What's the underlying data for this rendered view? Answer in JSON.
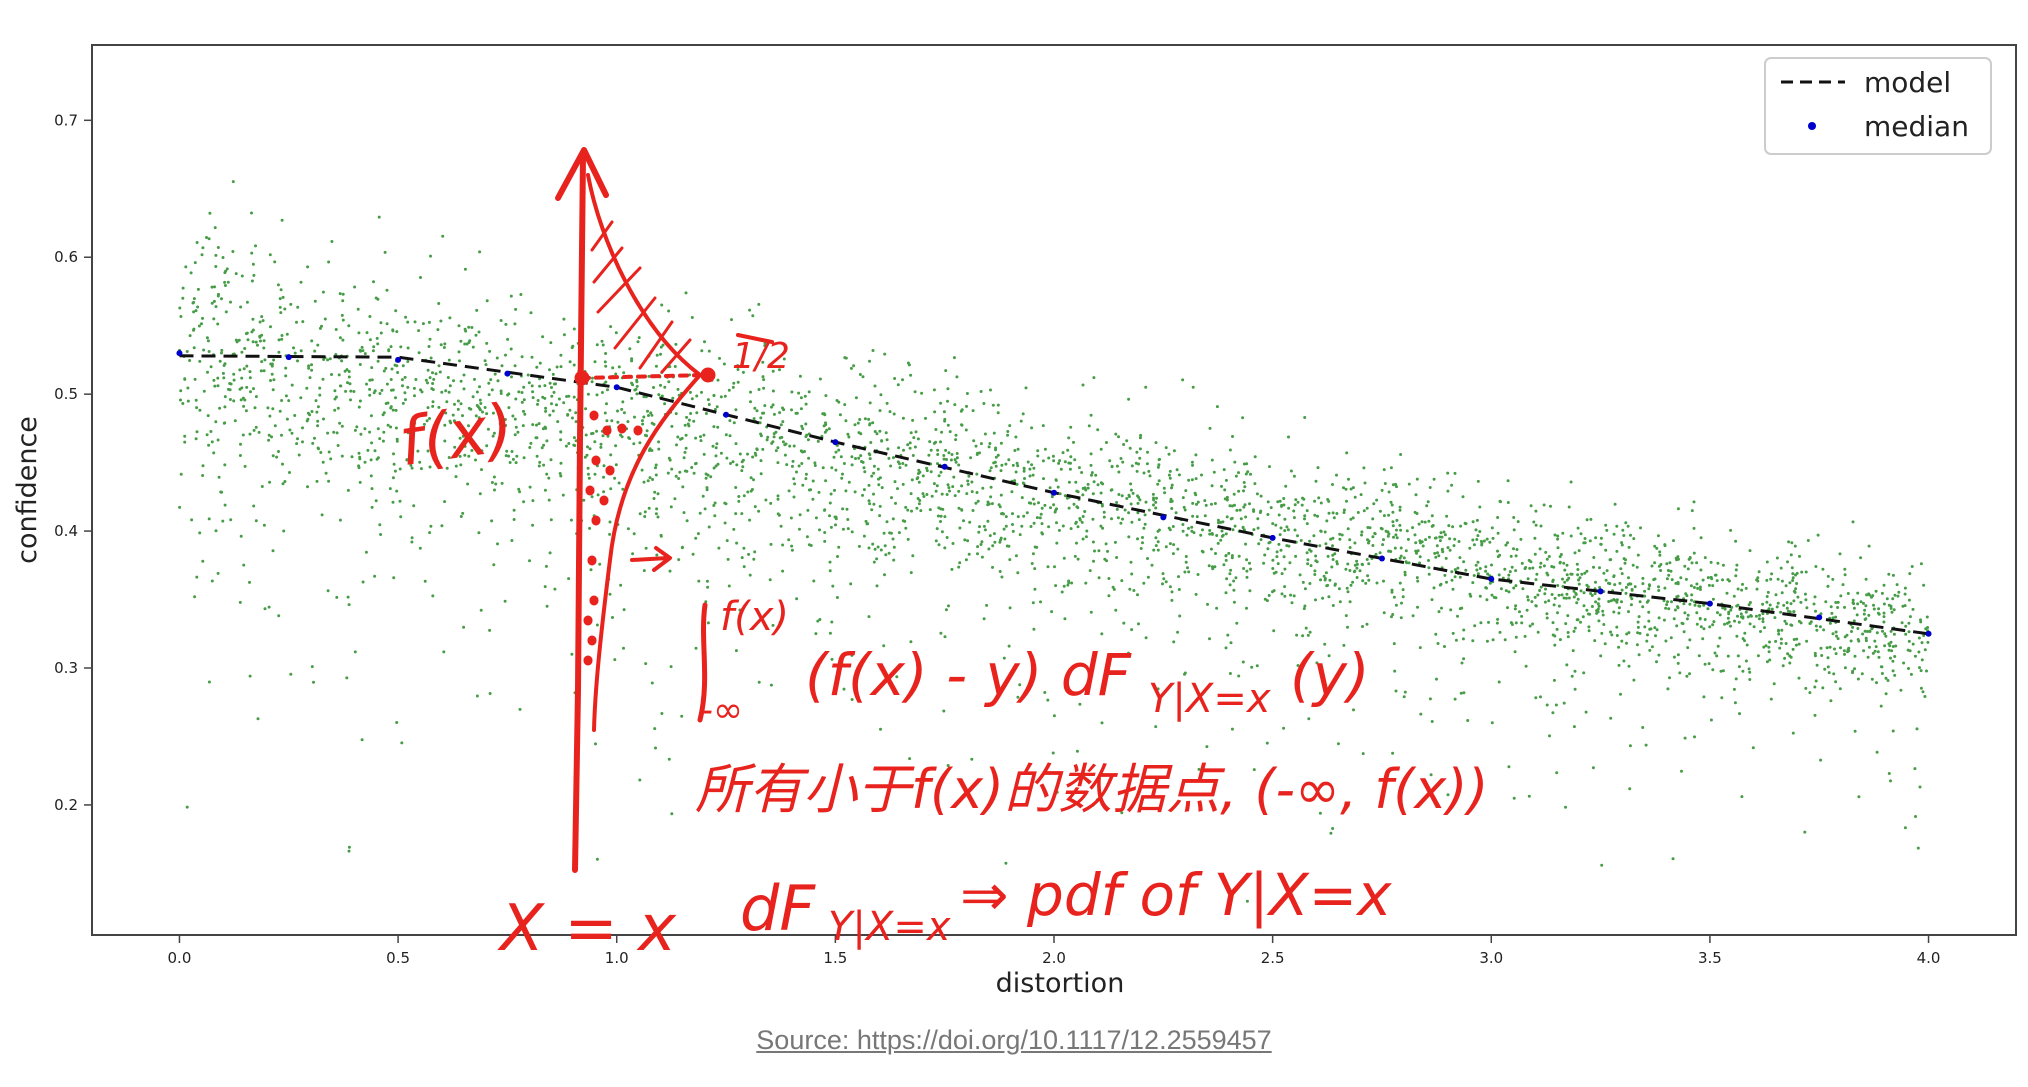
{
  "chart_data": {
    "type": "scatter",
    "xlabel": "distortion",
    "ylabel": "confidence",
    "xlim": [
      -0.2,
      4.2
    ],
    "ylim": [
      0.105,
      0.755
    ],
    "xticks": [
      "0.0",
      "0.5",
      "1.0",
      "1.5",
      "2.0",
      "2.5",
      "3.0",
      "3.5",
      "4.0"
    ],
    "yticks": [
      "0.2",
      "0.3",
      "0.4",
      "0.5",
      "0.6",
      "0.7"
    ],
    "grid": false,
    "legend_position": "top-right",
    "series": [
      {
        "name": "model",
        "style": "dashed line",
        "color": "#000000",
        "x": [
          0.0,
          0.5,
          1.0,
          1.5,
          2.0,
          2.5,
          3.0,
          3.5,
          4.0
        ],
        "y": [
          0.528,
          0.527,
          0.505,
          0.465,
          0.428,
          0.395,
          0.365,
          0.347,
          0.325
        ]
      },
      {
        "name": "median",
        "style": "points",
        "color": "#0000cc",
        "x": [
          0.0,
          0.25,
          0.5,
          0.75,
          1.0,
          1.25,
          1.5,
          1.75,
          2.0,
          2.25,
          2.5,
          2.75,
          3.0,
          3.25,
          3.5,
          3.75,
          4.0
        ],
        "y": [
          0.53,
          0.527,
          0.525,
          0.515,
          0.505,
          0.485,
          0.465,
          0.447,
          0.428,
          0.41,
          0.395,
          0.38,
          0.365,
          0.356,
          0.347,
          0.337,
          0.325
        ]
      },
      {
        "style": "scatter cloud",
        "color": "#0a7d0a",
        "x_range": [
          0.0,
          4.0
        ],
        "center_y_at_x0": 0.53,
        "center_y_at_x4": 0.325,
        "spread_at_x0": 0.06,
        "spread_at_x4": 0.028
      }
    ],
    "annotation_color": "#e8231e"
  },
  "legend": {
    "model_label": "model",
    "median_label": "median"
  },
  "annotations": {
    "fx_left": "f(x)",
    "half": "1/2",
    "arrow": "⇒",
    "integral_upper": "f(x)",
    "integral_lower": "-∞",
    "integral_body": "(f(x) - y) dF",
    "integral_sub": "Y|X=x",
    "integral_tail": "(y)",
    "chinese_line": "所有小于f(x)的数据点, (-∞, f(x))",
    "x_eq": "X = x",
    "dF": "dF",
    "dF_sub": "Y|X=x",
    "pdf_text": "⇒ pdf of Y|X=x"
  },
  "source": {
    "text": "Source: https://doi.org/10.1117/12.2559457"
  }
}
